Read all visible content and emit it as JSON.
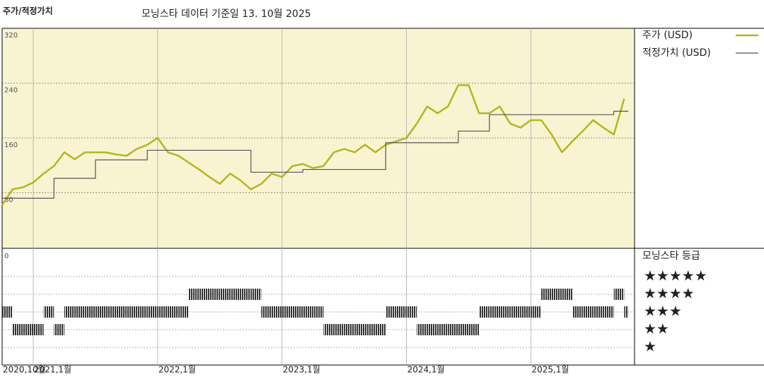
{
  "chart_data": {
    "type": "line",
    "title": "주가/적정가치",
    "subtitle": "모닝스타 데이터 기준일 13. 10월 2025",
    "x": [
      "2020-10",
      "2020-11",
      "2020-12",
      "2021-01",
      "2021-02",
      "2021-03",
      "2021-04",
      "2021-05",
      "2021-06",
      "2021-07",
      "2021-08",
      "2021-09",
      "2021-10",
      "2021-11",
      "2021-12",
      "2022-01",
      "2022-02",
      "2022-03",
      "2022-04",
      "2022-05",
      "2022-06",
      "2022-07",
      "2022-08",
      "2022-09",
      "2022-10",
      "2022-11",
      "2022-12",
      "2023-01",
      "2023-02",
      "2023-03",
      "2023-04",
      "2023-05",
      "2023-06",
      "2023-07",
      "2023-08",
      "2023-09",
      "2023-10",
      "2023-11",
      "2023-12",
      "2024-01",
      "2024-02",
      "2024-03",
      "2024-04",
      "2024-05",
      "2024-06",
      "2024-07",
      "2024-08",
      "2024-09",
      "2024-10",
      "2024-11",
      "2024-12",
      "2025-01",
      "2025-02",
      "2025-03",
      "2025-04",
      "2025-05",
      "2025-06",
      "2025-07",
      "2025-08",
      "2025-09",
      "2025-10"
    ],
    "series": [
      {
        "name": "주가 (USD)",
        "color": "#b3b61f",
        "width": 2.5,
        "step": false,
        "values": [
          62,
          85,
          88,
          95,
          108,
          119,
          139,
          129,
          139,
          139,
          139,
          136,
          134,
          144,
          150,
          160,
          139,
          134,
          124,
          114,
          103,
          93,
          108,
          98,
          85,
          93,
          108,
          103,
          119,
          122,
          116,
          119,
          139,
          144,
          139,
          150,
          139,
          150,
          155,
          160,
          181,
          206,
          196,
          206,
          237,
          237,
          196,
          196,
          206,
          181,
          175,
          186,
          186,
          165,
          139,
          155,
          170,
          186,
          175,
          165,
          217
        ]
      },
      {
        "name": "적정가치 (USD)",
        "color": "#555555",
        "width": 1.2,
        "step": true,
        "values": [
          72,
          72,
          72,
          72,
          72,
          101,
          101,
          101,
          101,
          128,
          128,
          128,
          128,
          128,
          142,
          142,
          142,
          142,
          142,
          142,
          142,
          142,
          142,
          142,
          110,
          110,
          110,
          110,
          110,
          114,
          114,
          114,
          114,
          114,
          114,
          114,
          114,
          153,
          153,
          153,
          153,
          153,
          153,
          153,
          170,
          170,
          170,
          194,
          194,
          194,
          194,
          194,
          194,
          194,
          194,
          194,
          194,
          194,
          194,
          199,
          199
        ]
      }
    ],
    "xlim": [
      "2020-10",
      "2025-11"
    ],
    "xticks": [
      {
        "value": "2020-10",
        "label": "2020,10월"
      },
      {
        "value": "2021-01",
        "label": "2021,1월"
      },
      {
        "value": "2022-01",
        "label": "2022,1월"
      },
      {
        "value": "2023-01",
        "label": "2023,1월"
      },
      {
        "value": "2024-01",
        "label": "2024,1월"
      },
      {
        "value": "2025-01",
        "label": "2025,1월"
      }
    ],
    "ylim": [
      0,
      320
    ],
    "yticks": [
      80,
      160,
      240,
      320
    ],
    "grid": true,
    "legend": "right",
    "background": "#f8f4d2",
    "ratings": {
      "title": "모닝스타 등급",
      "tick": "0",
      "levels": [
        "★★★★★",
        "★★★★",
        "★★★",
        "★★",
        "★"
      ],
      "values": [
        3,
        2,
        2,
        2,
        3,
        2,
        3,
        3,
        3,
        3,
        3,
        3,
        3,
        3,
        3,
        3,
        3,
        3,
        4,
        4,
        4,
        4,
        4,
        4,
        4,
        3,
        3,
        3,
        3,
        3,
        3,
        2,
        2,
        2,
        2,
        2,
        2,
        3,
        3,
        3,
        2,
        2,
        2,
        2,
        2,
        2,
        3,
        3,
        3,
        3,
        3,
        3,
        4,
        4,
        4,
        3,
        3,
        3,
        3,
        4,
        3
      ]
    }
  }
}
